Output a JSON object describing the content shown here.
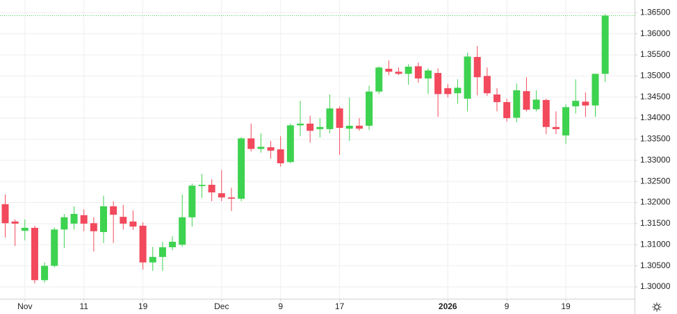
{
  "chart_data": {
    "type": "candlestick",
    "categories": [
      null,
      null,
      "Nov",
      null,
      null,
      null,
      null,
      null,
      "11",
      null,
      null,
      null,
      null,
      null,
      "19",
      null,
      null,
      null,
      null,
      null,
      null,
      null,
      "Dec",
      null,
      null,
      null,
      null,
      null,
      "9",
      null,
      null,
      null,
      null,
      null,
      "17",
      null,
      null,
      null,
      null,
      null,
      null,
      null,
      null,
      null,
      null,
      "2026",
      null,
      null,
      null,
      null,
      null,
      "9",
      null,
      null,
      null,
      null,
      null,
      "19",
      null,
      null,
      null,
      null
    ],
    "open": [
      1.3196,
      1.3155,
      1.3133,
      1.314,
      1.3016,
      1.305,
      1.3136,
      1.315,
      1.317,
      1.3151,
      1.313,
      1.3191,
      1.3166,
      1.3155,
      1.3145,
      1.3058,
      1.3071,
      1.3094,
      1.31,
      1.3165,
      1.3239,
      1.3242,
      1.3222,
      1.3212,
      1.3209,
      1.3352,
      1.3327,
      1.3331,
      1.3326,
      1.3296,
      1.3383,
      1.3387,
      1.3374,
      1.3374,
      1.3423,
      1.3375,
      1.3382,
      1.3382,
      1.3463,
      1.3517,
      1.351,
      1.3505,
      1.3523,
      1.3494,
      1.3507,
      1.3471,
      1.3459,
      1.3446,
      1.3545,
      1.35,
      1.3456,
      1.3438,
      1.3401,
      1.3464,
      1.3421,
      1.3443,
      1.3379,
      1.3359,
      1.3428,
      1.3439,
      1.343,
      1.3505
    ],
    "high": [
      1.3219,
      1.316,
      1.316,
      1.3145,
      1.3058,
      1.3141,
      1.3173,
      1.3191,
      1.3184,
      1.3165,
      1.3216,
      1.3203,
      1.3194,
      1.3181,
      1.3153,
      1.3095,
      1.3107,
      1.312,
      1.3219,
      1.3245,
      1.3268,
      1.3255,
      1.3277,
      1.3235,
      1.3355,
      1.3387,
      1.3364,
      1.3346,
      1.3357,
      1.3387,
      1.3441,
      1.3406,
      1.34,
      1.3456,
      1.3428,
      1.3449,
      1.34,
      1.3477,
      1.3523,
      1.3537,
      1.352,
      1.3528,
      1.3532,
      1.3518,
      1.3518,
      1.3481,
      1.3492,
      1.3555,
      1.3571,
      1.352,
      1.3471,
      1.3446,
      1.3482,
      1.3497,
      1.3466,
      1.3446,
      1.3416,
      1.3433,
      1.3492,
      1.3461,
      1.3505,
      1.3647
    ],
    "low": [
      1.3117,
      1.3097,
      1.311,
      1.3008,
      1.301,
      1.3046,
      1.3092,
      1.3136,
      1.3132,
      1.3084,
      1.3104,
      1.3104,
      1.3136,
      1.3135,
      1.3041,
      1.3038,
      1.3038,
      1.3087,
      1.3095,
      1.3143,
      1.3211,
      1.3203,
      1.3203,
      1.318,
      1.3203,
      1.3321,
      1.3318,
      1.3304,
      1.3285,
      1.3293,
      1.3357,
      1.3342,
      1.3354,
      1.3364,
      1.3313,
      1.3346,
      1.337,
      1.3372,
      1.3457,
      1.3502,
      1.3502,
      1.3479,
      1.3484,
      1.3457,
      1.3403,
      1.3449,
      1.3434,
      1.3416,
      1.3454,
      1.3453,
      1.3416,
      1.3392,
      1.339,
      1.3416,
      1.3416,
      1.3362,
      1.3362,
      1.3339,
      1.3411,
      1.3403,
      1.3403,
      1.3486
    ],
    "close": [
      1.3151,
      1.315,
      1.314,
      1.3016,
      1.305,
      1.3136,
      1.3165,
      1.3173,
      1.315,
      1.3132,
      1.3191,
      1.3171,
      1.315,
      1.3143,
      1.3058,
      1.3071,
      1.3094,
      1.3107,
      1.3165,
      1.324,
      1.3242,
      1.3224,
      1.3212,
      1.3209,
      1.3352,
      1.3327,
      1.3332,
      1.3323,
      1.3293,
      1.3383,
      1.3387,
      1.337,
      1.3379,
      1.3423,
      1.3377,
      1.3382,
      1.3375,
      1.3463,
      1.352,
      1.351,
      1.3505,
      1.3522,
      1.3494,
      1.3513,
      1.3457,
      1.3457,
      1.3472,
      1.3546,
      1.3497,
      1.3459,
      1.3438,
      1.34,
      1.3466,
      1.342,
      1.3444,
      1.3379,
      1.3374,
      1.3426,
      1.3441,
      1.343,
      1.3505,
      1.3643
    ],
    "up_color": "#3dd24f",
    "down_color": "#f2495c",
    "last_price_color": "#3dd24f",
    "ylim": [
      1.2972,
      1.368
    ],
    "yticks": [
      {
        "value": 1.3,
        "label": "1.30000"
      },
      {
        "value": 1.305,
        "label": "1.30500"
      },
      {
        "value": 1.31,
        "label": "1.31000"
      },
      {
        "value": 1.315,
        "label": "1.31500"
      },
      {
        "value": 1.32,
        "label": "1.32000"
      },
      {
        "value": 1.325,
        "label": "1.32500"
      },
      {
        "value": 1.33,
        "label": "1.33000"
      },
      {
        "value": 1.335,
        "label": "1.33500"
      },
      {
        "value": 1.34,
        "label": "1.34000"
      },
      {
        "value": 1.345,
        "label": "1.34500"
      },
      {
        "value": 1.35,
        "label": "1.35000"
      },
      {
        "value": 1.355,
        "label": "1.35500"
      },
      {
        "value": 1.36,
        "label": "1.36000"
      },
      {
        "value": 1.365,
        "label": "1.36500"
      }
    ],
    "grid": true
  }
}
